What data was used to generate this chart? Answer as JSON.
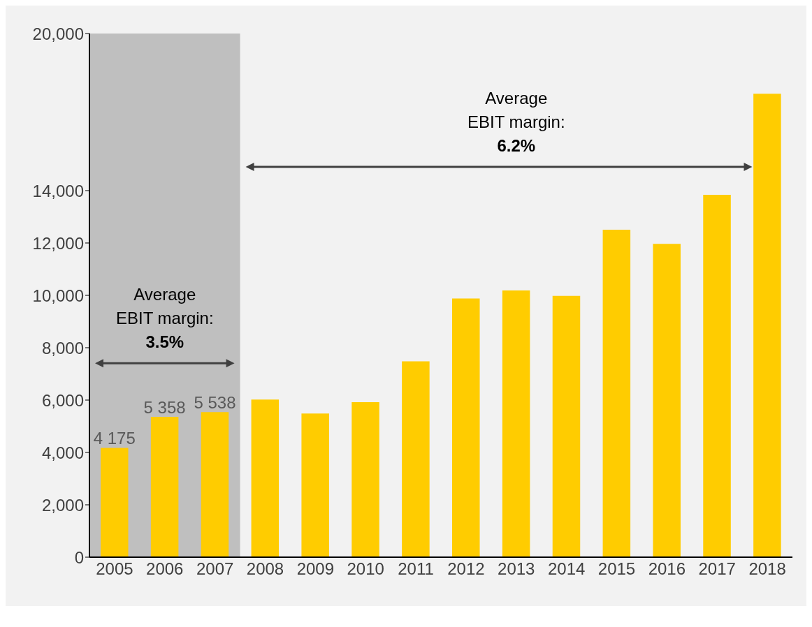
{
  "chart_data": {
    "type": "bar",
    "categories": [
      "2005",
      "2006",
      "2007",
      "2008",
      "2009",
      "2010",
      "2011",
      "2012",
      "2013",
      "2014",
      "2015",
      "2016",
      "2017",
      "2018"
    ],
    "values": [
      4175,
      5358,
      5538,
      6020,
      5490,
      5920,
      7480,
      9880,
      10190,
      9980,
      12510,
      11970,
      13840,
      17700
    ],
    "value_labels": [
      "4 175",
      "5 358",
      "5 538",
      null,
      null,
      null,
      null,
      null,
      null,
      null,
      null,
      null,
      null,
      null
    ],
    "color": "#ffcc00",
    "ylim": [
      0,
      20000
    ],
    "yticks": [
      {
        "value": 0,
        "label": "0"
      },
      {
        "value": 2000,
        "label": "2,000"
      },
      {
        "value": 4000,
        "label": "4,000"
      },
      {
        "value": 6000,
        "label": "6,000"
      },
      {
        "value": 8000,
        "label": "8,000"
      },
      {
        "value": 10000,
        "label": "10,000"
      },
      {
        "value": 12000,
        "label": "12,000"
      },
      {
        "value": 14000,
        "label": "14,000"
      },
      {
        "value": 20000,
        "label": "20,000"
      }
    ],
    "bands": [
      {
        "axis": "x",
        "from": "2005",
        "to": "2007",
        "color": "#bfbfbf"
      }
    ],
    "annotations": [
      "Average\nEBIT margin:\n3.5%",
      "Average\nEBIT margin:\n6.2%"
    ],
    "grid": false,
    "legend": false
  }
}
